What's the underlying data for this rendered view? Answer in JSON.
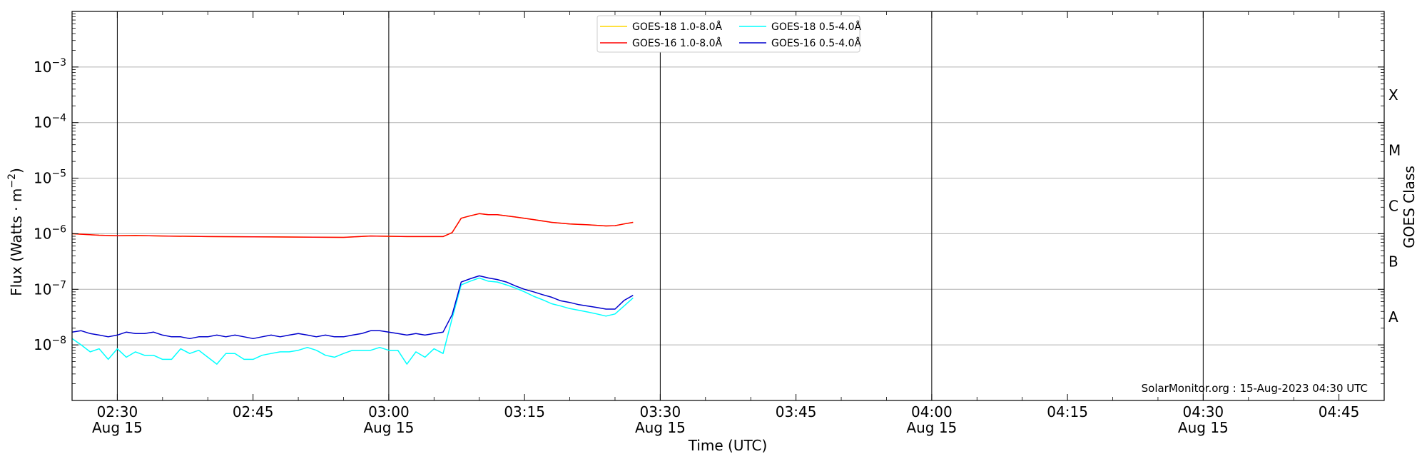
{
  "chart_data": {
    "type": "line",
    "xlabel": "Time (UTC)",
    "ylabel": "Flux (Watts · m",
    "ylabel_sup": "−2",
    "ylabel_close": ")",
    "right_label": "GOES Class",
    "credit": "SolarMonitor.org : 15-Aug-2023 04:30 UTC",
    "x_range_utc": [
      "02:25",
      "04:50"
    ],
    "y_range_log10": [
      -9.0,
      -2.0
    ],
    "y_scale": "log",
    "grid": "horizontal at decades",
    "legend_position": "top-center",
    "x_ticks": [
      {
        "t": "02:30",
        "label": "02:30",
        "date": "Aug 15",
        "vline": true
      },
      {
        "t": "02:45",
        "label": "02:45",
        "date": "",
        "vline": false
      },
      {
        "t": "03:00",
        "label": "03:00",
        "date": "Aug 15",
        "vline": true
      },
      {
        "t": "03:15",
        "label": "03:15",
        "date": "",
        "vline": false
      },
      {
        "t": "03:30",
        "label": "03:30",
        "date": "Aug 15",
        "vline": true
      },
      {
        "t": "03:45",
        "label": "03:45",
        "date": "",
        "vline": false
      },
      {
        "t": "04:00",
        "label": "04:00",
        "date": "Aug 15",
        "vline": true
      },
      {
        "t": "04:15",
        "label": "04:15",
        "date": "",
        "vline": false
      },
      {
        "t": "04:30",
        "label": "04:30",
        "date": "Aug 15",
        "vline": true
      },
      {
        "t": "04:45",
        "label": "04:45",
        "date": "",
        "vline": false
      }
    ],
    "y_ticks": [
      {
        "value": 1e-08,
        "base": "10",
        "exp": "−8"
      },
      {
        "value": 1e-07,
        "base": "10",
        "exp": "−7"
      },
      {
        "value": 1e-06,
        "base": "10",
        "exp": "−6"
      },
      {
        "value": 1e-05,
        "base": "10",
        "exp": "−5"
      },
      {
        "value": 0.0001,
        "base": "10",
        "exp": "−4"
      },
      {
        "value": 0.001,
        "base": "10",
        "exp": "−3"
      }
    ],
    "goes_classes": [
      {
        "label": "X",
        "value": 0.000316
      },
      {
        "label": "M",
        "value": 3.16e-05
      },
      {
        "label": "C",
        "value": 3.16e-06
      },
      {
        "label": "B",
        "value": 3.16e-07
      },
      {
        "label": "A",
        "value": 3.16e-08
      }
    ],
    "legend": [
      {
        "label": "GOES-18 1.0-8.0Å",
        "color": "#ffd700"
      },
      {
        "label": "GOES-18 0.5-4.0Å",
        "color": "#00ffff"
      },
      {
        "label": "GOES-16 1.0-8.0Å",
        "color": "#ff0000"
      },
      {
        "label": "GOES-16 0.5-4.0Å",
        "color": "#0000cd"
      }
    ],
    "series": [
      {
        "name": "GOES-18 1.0-8.0Å",
        "color": "#ffd700",
        "x": [
          "02:25",
          "02:28",
          "02:30",
          "02:32",
          "02:35",
          "02:40",
          "02:45",
          "02:50",
          "02:55",
          "02:58",
          "03:00",
          "03:02",
          "03:05",
          "03:06",
          "03:07",
          "03:08",
          "03:09",
          "03:10",
          "03:11",
          "03:12",
          "03:14",
          "03:16",
          "03:18",
          "03:20",
          "03:22",
          "03:24",
          "03:25",
          "03:26",
          "03:27"
        ],
        "y": [
          1e-06,
          9.4e-07,
          9.2e-07,
          9.3e-07,
          9.1e-07,
          8.9e-07,
          8.8e-07,
          8.7e-07,
          8.6e-07,
          9.1e-07,
          9e-07,
          8.9e-07,
          8.9e-07,
          8.9e-07,
          1.05e-06,
          1.9e-06,
          2.1e-06,
          2.3e-06,
          2.2e-06,
          2.2e-06,
          2e-06,
          1.8e-06,
          1.6e-06,
          1.5e-06,
          1.45e-06,
          1.38e-06,
          1.4e-06,
          1.5e-06,
          1.6e-06
        ]
      },
      {
        "name": "GOES-16 1.0-8.0Å",
        "color": "#ff0000",
        "x": [
          "02:25",
          "02:28",
          "02:30",
          "02:32",
          "02:35",
          "02:40",
          "02:45",
          "02:50",
          "02:55",
          "02:58",
          "03:00",
          "03:02",
          "03:05",
          "03:06",
          "03:07",
          "03:08",
          "03:09",
          "03:10",
          "03:11",
          "03:12",
          "03:14",
          "03:16",
          "03:18",
          "03:20",
          "03:22",
          "03:24",
          "03:25",
          "03:26",
          "03:27"
        ],
        "y": [
          1e-06,
          9.4e-07,
          9.2e-07,
          9.3e-07,
          9.1e-07,
          8.9e-07,
          8.8e-07,
          8.7e-07,
          8.6e-07,
          9.1e-07,
          9e-07,
          8.9e-07,
          8.9e-07,
          8.9e-07,
          1.05e-06,
          1.9e-06,
          2.1e-06,
          2.3e-06,
          2.2e-06,
          2.2e-06,
          2e-06,
          1.8e-06,
          1.6e-06,
          1.5e-06,
          1.45e-06,
          1.38e-06,
          1.4e-06,
          1.5e-06,
          1.6e-06
        ]
      },
      {
        "name": "GOES-18 0.5-4.0Å",
        "color": "#00ffff",
        "x": [
          "02:25",
          "02:26",
          "02:27",
          "02:28",
          "02:29",
          "02:30",
          "02:31",
          "02:32",
          "02:33",
          "02:34",
          "02:35",
          "02:36",
          "02:37",
          "02:38",
          "02:39",
          "02:40",
          "02:41",
          "02:42",
          "02:43",
          "02:44",
          "02:45",
          "02:46",
          "02:47",
          "02:48",
          "02:49",
          "02:50",
          "02:51",
          "02:52",
          "02:53",
          "02:54",
          "02:55",
          "02:56",
          "02:57",
          "02:58",
          "02:59",
          "03:00",
          "03:01",
          "03:02",
          "03:03",
          "03:04",
          "03:05",
          "03:06",
          "03:07",
          "03:08",
          "03:09",
          "03:10",
          "03:11",
          "03:12",
          "03:13",
          "03:14",
          "03:15",
          "03:16",
          "03:17",
          "03:18",
          "03:19",
          "03:20",
          "03:21",
          "03:22",
          "03:23",
          "03:24",
          "03:25",
          "03:26",
          "03:27"
        ],
        "y": [
          1.3e-08,
          1e-08,
          7.5e-09,
          8.5e-09,
          5.5e-09,
          8.5e-09,
          6e-09,
          7.5e-09,
          6.5e-09,
          6.5e-09,
          5.5e-09,
          5.5e-09,
          8.5e-09,
          7e-09,
          8e-09,
          6e-09,
          4.5e-09,
          7e-09,
          7e-09,
          5.5e-09,
          5.5e-09,
          6.5e-09,
          7e-09,
          7.5e-09,
          7.5e-09,
          8e-09,
          9e-09,
          8e-09,
          6.5e-09,
          6e-09,
          7e-09,
          8e-09,
          8e-09,
          8e-09,
          9e-09,
          8e-09,
          8e-09,
          4.5e-09,
          7.5e-09,
          6e-09,
          8.5e-09,
          7e-09,
          3e-08,
          1.2e-07,
          1.4e-07,
          1.6e-07,
          1.4e-07,
          1.35e-07,
          1.2e-07,
          1.05e-07,
          9e-08,
          7.5e-08,
          6.5e-08,
          5.5e-08,
          5e-08,
          4.5e-08,
          4.2e-08,
          3.9e-08,
          3.6e-08,
          3.3e-08,
          3.6e-08,
          5e-08,
          7e-08
        ]
      },
      {
        "name": "GOES-16 0.5-4.0Å",
        "color": "#0000cd",
        "x": [
          "02:25",
          "02:26",
          "02:27",
          "02:28",
          "02:29",
          "02:30",
          "02:31",
          "02:32",
          "02:33",
          "02:34",
          "02:35",
          "02:36",
          "02:37",
          "02:38",
          "02:39",
          "02:40",
          "02:41",
          "02:42",
          "02:43",
          "02:44",
          "02:45",
          "02:46",
          "02:47",
          "02:48",
          "02:49",
          "02:50",
          "02:51",
          "02:52",
          "02:53",
          "02:54",
          "02:55",
          "02:56",
          "02:57",
          "02:58",
          "02:59",
          "03:00",
          "03:01",
          "03:02",
          "03:03",
          "03:04",
          "03:05",
          "03:06",
          "03:07",
          "03:08",
          "03:09",
          "03:10",
          "03:11",
          "03:12",
          "03:13",
          "03:14",
          "03:15",
          "03:16",
          "03:17",
          "03:18",
          "03:19",
          "03:20",
          "03:21",
          "03:22",
          "03:23",
          "03:24",
          "03:25",
          "03:26",
          "03:27"
        ],
        "y": [
          1.7e-08,
          1.8e-08,
          1.6e-08,
          1.5e-08,
          1.4e-08,
          1.5e-08,
          1.7e-08,
          1.6e-08,
          1.6e-08,
          1.7e-08,
          1.5e-08,
          1.4e-08,
          1.4e-08,
          1.3e-08,
          1.4e-08,
          1.4e-08,
          1.5e-08,
          1.4e-08,
          1.5e-08,
          1.4e-08,
          1.3e-08,
          1.4e-08,
          1.5e-08,
          1.4e-08,
          1.5e-08,
          1.6e-08,
          1.5e-08,
          1.4e-08,
          1.5e-08,
          1.4e-08,
          1.4e-08,
          1.5e-08,
          1.6e-08,
          1.8e-08,
          1.8e-08,
          1.7e-08,
          1.6e-08,
          1.5e-08,
          1.6e-08,
          1.5e-08,
          1.6e-08,
          1.7e-08,
          3.5e-08,
          1.35e-07,
          1.55e-07,
          1.75e-07,
          1.6e-07,
          1.5e-07,
          1.35e-07,
          1.15e-07,
          1e-07,
          9e-08,
          8e-08,
          7.2e-08,
          6.2e-08,
          5.8e-08,
          5.3e-08,
          5e-08,
          4.7e-08,
          4.4e-08,
          4.4e-08,
          6.3e-08,
          7.8e-08
        ]
      }
    ]
  }
}
